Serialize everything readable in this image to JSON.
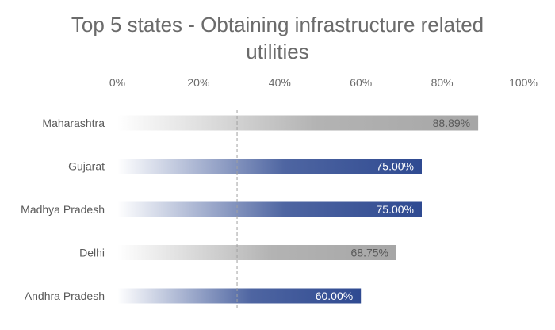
{
  "chart_data": {
    "type": "bar",
    "orientation": "horizontal",
    "title": "Top 5 states - Obtaining infrastructure related utilities",
    "categories": [
      "Maharashtra",
      "Gujarat",
      "Madhya Pradesh",
      "Delhi",
      "Andhra Pradesh"
    ],
    "values": [
      88.89,
      75.0,
      75.0,
      68.75,
      60.0
    ],
    "data_labels": [
      "88.89%",
      "75.00%",
      "75.00%",
      "68.75%",
      "60.00%"
    ],
    "bar_colors": [
      "#a6a6a6",
      "#2f4a91",
      "#2f4a91",
      "#a6a6a6",
      "#2f4a91"
    ],
    "label_colors": [
      "#595959",
      "#ffffff",
      "#ffffff",
      "#595959",
      "#ffffff"
    ],
    "x_ticks": [
      "0%",
      "20%",
      "40%",
      "60%",
      "80%",
      "100%"
    ],
    "xlim": [
      0,
      100
    ],
    "reference_line": 29.5,
    "axis_position": "top",
    "grid": false,
    "legend": "none"
  }
}
